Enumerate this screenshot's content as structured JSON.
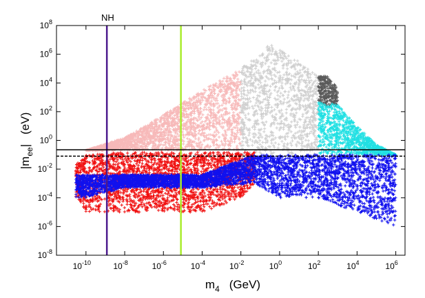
{
  "chart_data": {
    "type": "scatter",
    "title": "",
    "annotation": "NH",
    "xlabel": {
      "base": "m",
      "sub": "4",
      "unit": "(GeV)"
    },
    "ylabel": {
      "base": "|m",
      "sub": "ee",
      "close": "|",
      "unit": "(eV)"
    },
    "x_scale": "log",
    "y_scale": "log",
    "xlim": [
      3e-12,
      3000000.0
    ],
    "ylim": [
      1e-08,
      100000000.0
    ],
    "x_ticks": [
      {
        "base": "10",
        "exp": "-10",
        "value": 1e-10
      },
      {
        "base": "10",
        "exp": "-8",
        "value": 1e-08
      },
      {
        "base": "10",
        "exp": "-6",
        "value": 1e-06
      },
      {
        "base": "10",
        "exp": "-4",
        "value": 0.0001
      },
      {
        "base": "10",
        "exp": "-2",
        "value": 0.01
      },
      {
        "base": "10",
        "exp": "0",
        "value": 1
      },
      {
        "base": "10",
        "exp": "2",
        "value": 100.0
      },
      {
        "base": "10",
        "exp": "4",
        "value": 10000.0
      },
      {
        "base": "10",
        "exp": "6",
        "value": 1000000.0
      }
    ],
    "y_ticks": [
      {
        "base": "10",
        "exp": "-8",
        "value": 1e-08
      },
      {
        "base": "10",
        "exp": "-6",
        "value": 1e-06
      },
      {
        "base": "10",
        "exp": "-4",
        "value": 0.0001
      },
      {
        "base": "10",
        "exp": "-2",
        "value": 0.01
      },
      {
        "base": "10",
        "exp": "0",
        "value": 1
      },
      {
        "base": "10",
        "exp": "2",
        "value": 100.0
      },
      {
        "base": "10",
        "exp": "4",
        "value": 10000.0
      },
      {
        "base": "10",
        "exp": "6",
        "value": 1000000.0
      },
      {
        "base": "10",
        "exp": "8",
        "value": 100000000.0
      }
    ],
    "grid": false,
    "legend": "none",
    "marker": "plus",
    "vertical_lines": [
      {
        "x": 1.2e-09,
        "color": "#4b1a8c"
      },
      {
        "x": 8e-06,
        "color": "#a8ec2c"
      }
    ],
    "horizontal_lines": [
      {
        "y": 0.22,
        "style": "solid",
        "color": "#000000"
      },
      {
        "y": 0.08,
        "style": "dashed",
        "color": "#000000"
      }
    ],
    "series": [
      {
        "color": "#f7b9b9",
        "envelope": {
          "x": [
            1e-10,
            1e-08,
            1e-06,
            0.0001,
            0.01
          ],
          "y_min": [
            0.2,
            0.2,
            0.2,
            0.2,
            0.2
          ],
          "y_max": [
            0.2,
            1.5,
            60,
            3000,
            100000.0
          ]
        }
      },
      {
        "color": "#cfcfcf",
        "envelope": {
          "x": [
            0.01,
            0.1,
            0.3,
            1,
            10,
            100
          ],
          "y_min": [
            0.1,
            0.1,
            0.1,
            0.1,
            0.1,
            0.1
          ],
          "y_max": [
            100000.0,
            1000000.0,
            5000000.0,
            2000000.0,
            300000.0,
            30000.0
          ]
        }
      },
      {
        "color": "#5a5a5a",
        "envelope": {
          "x": [
            100,
            300,
            1000
          ],
          "y_min": [
            300,
            200,
            300
          ],
          "y_max": [
            30000.0,
            30000.0,
            4000
          ]
        }
      },
      {
        "color": "#21e0e3",
        "envelope": {
          "x": [
            100,
            1000,
            10000.0,
            100000.0,
            1000000.0
          ],
          "y_min": [
            0.1,
            0.1,
            0.1,
            0.1,
            0.1
          ],
          "y_max": [
            500,
            300,
            10,
            0.5,
            0.1
          ]
        }
      },
      {
        "color": "#f01010",
        "envelope": {
          "x": [
            3e-11,
            1e-10,
            1e-08,
            1e-06,
            0.0001,
            0.01,
            0.05
          ],
          "y_min": [
            0.0001,
            1e-05,
            1e-05,
            1e-05,
            1e-05,
            0.0001,
            0.001
          ],
          "y_max": [
            0.02,
            0.1,
            0.15,
            0.15,
            0.15,
            0.15,
            0.15
          ]
        }
      },
      {
        "color": "#1010ee",
        "envelope": {
          "x": [
            3e-11,
            1e-10,
            1e-08,
            1e-06,
            0.0001,
            0.05,
            1,
            100,
            10000.0,
            1000000.0
          ],
          "y_min": [
            0.0001,
            0.0001,
            0.0005,
            0.0005,
            0.0005,
            0.001,
            0.0001,
            0.0001,
            1e-05,
            1e-06
          ],
          "y_max": [
            0.004,
            0.004,
            0.004,
            0.004,
            0.004,
            0.1,
            0.1,
            0.1,
            0.1,
            0.1
          ]
        }
      }
    ]
  }
}
